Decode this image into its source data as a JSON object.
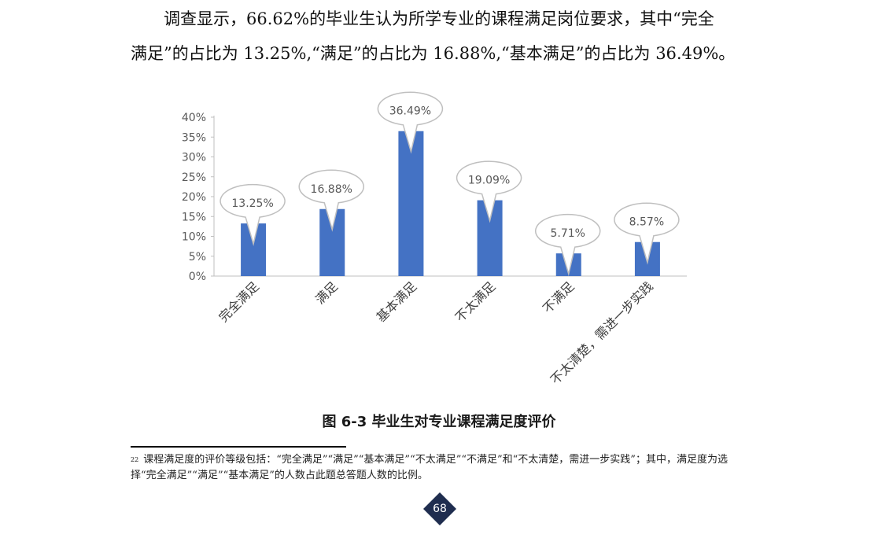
{
  "paragraph": {
    "line1": "调查显示，66.62%的毕业生认为所学专业的课程满足岗位要求，其中“完全",
    "line2": "满足”的占比为 13.25%,“满足”的占比为 16.88%,“基本满足”的占比为 36.49%。"
  },
  "chart_data": {
    "type": "bar",
    "categories": [
      "完全满足",
      "满足",
      "基本满足",
      "不太满足",
      "不满足",
      "不太清楚，需进一步实践"
    ],
    "values": [
      13.25,
      16.88,
      36.49,
      19.09,
      5.71,
      8.57
    ],
    "data_labels": [
      "13.25%",
      "16.88%",
      "36.49%",
      "19.09%",
      "5.71%",
      "8.57%"
    ],
    "y_ticks": [
      "0%",
      "5%",
      "10%",
      "15%",
      "20%",
      "25%",
      "30%",
      "35%",
      "40%"
    ],
    "ylim": [
      0,
      40
    ],
    "bar_color": "#4472c4",
    "title": "",
    "xlabel": "",
    "ylabel": "",
    "grid": false
  },
  "caption": "图 6-3   毕业生对专业课程满足度评价",
  "footnote": {
    "marker": "22",
    "text": "课程满足度的评价等级包括：“完全满足”“满足”“基本满足”“不太满足”“不满足”和“不太清楚，需进一步实践”；其中，满足度为选择“完全满足”“满足”“基本满足”的人数占此题总答题人数的比例。"
  },
  "page": {
    "number": "68",
    "badge_color": "#1f2d4f"
  }
}
